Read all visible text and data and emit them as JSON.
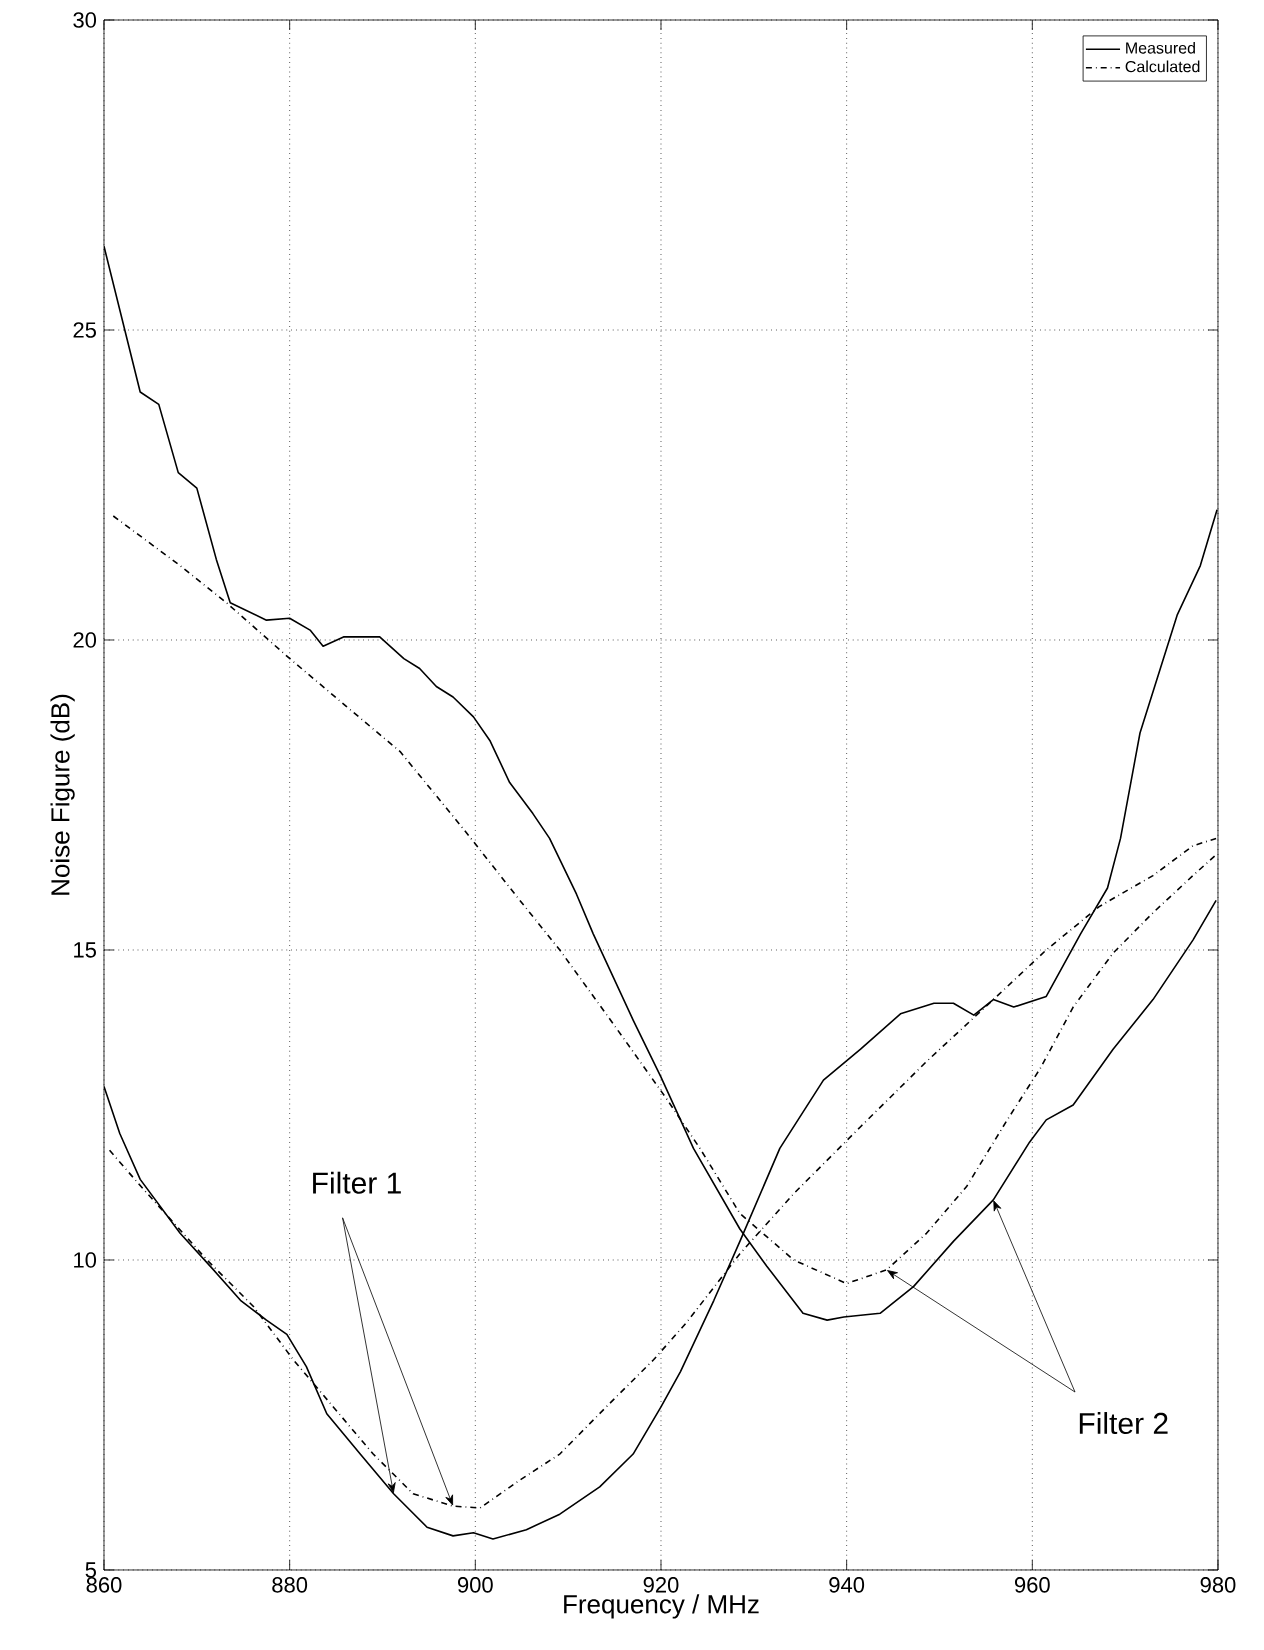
{
  "chart_data": {
    "type": "line",
    "xlabel": "Frequency / MHz",
    "ylabel": "Noise Figure (dB)",
    "xlim": [
      860,
      980
    ],
    "xticks": [
      860,
      880,
      900,
      920,
      940,
      960,
      980
    ],
    "ylim": [
      5,
      30
    ],
    "yticks": [
      5,
      10,
      15,
      20,
      25,
      30
    ],
    "grid": true,
    "legend": "top right",
    "series": [
      {
        "name": "Measured",
        "color": "#000000",
        "line_style": "solid",
        "x": [
          860,
          861.7,
          863.9,
          868.2,
          871.8,
          874.7,
          877.5,
          879.7,
          881.8,
          884,
          887.6,
          891.2,
          894.8,
          897.6,
          899.8,
          901.9,
          905.5,
          909.1,
          913.4,
          917,
          920,
          922.1,
          925.7,
          928.5,
          932.8,
          937.5,
          941.5,
          945.8,
          949.4,
          951.5,
          953.7,
          955.8,
          958,
          961.5,
          965.2,
          968.1,
          969.5,
          971.6,
          975.6,
          978.1,
          979.9
        ],
        "values": [
          12.8,
          12.04,
          11.3,
          10.43,
          9.84,
          9.35,
          9.03,
          8.8,
          8.28,
          7.52,
          6.87,
          6.23,
          5.69,
          5.55,
          5.6,
          5.5,
          5.65,
          5.9,
          6.34,
          6.87,
          7.63,
          8.2,
          9.35,
          10.3,
          11.8,
          12.9,
          13.4,
          13.97,
          14.14,
          14.14,
          13.95,
          14.2,
          14.08,
          14.25,
          15.26,
          16.0,
          16.8,
          18.5,
          20.4,
          21.2,
          22.1
        ]
      },
      {
        "color": "#000000",
        "line_style": "solid",
        "x": [
          860,
          863.9,
          865.9,
          868,
          870,
          872.1,
          873.6,
          877.5,
          880,
          882.2,
          883.6,
          885.8,
          889.7,
          892.3,
          894,
          895.8,
          897.6,
          899.8,
          901.6,
          903.7,
          906.2,
          908,
          910.9,
          912.7,
          917,
          920,
          923.5,
          928.5,
          931.4,
          935.3,
          937.9,
          939.7,
          943.6,
          947.2,
          951.5,
          955.8,
          959.7,
          961.5,
          964.4,
          968.7,
          973,
          977.3,
          979.8
        ],
        "values": [
          26.35,
          24.0,
          23.8,
          22.7,
          22.45,
          21.3,
          20.6,
          20.32,
          20.35,
          20.16,
          19.9,
          20.05,
          20.05,
          19.7,
          19.54,
          19.25,
          19.08,
          18.76,
          18.37,
          17.7,
          17.2,
          16.8,
          15.9,
          15.26,
          13.87,
          12.95,
          11.8,
          10.5,
          9.9,
          9.14,
          9.03,
          9.08,
          9.14,
          9.57,
          10.3,
          10.97,
          11.9,
          12.26,
          12.5,
          13.4,
          14.2,
          15.16,
          15.8
        ]
      },
      {
        "name": "Calculated",
        "color": "#000000",
        "line_style": "dashdot",
        "x": [
          860.6,
          863.9,
          871.1,
          876.1,
          880.4,
          884.7,
          889,
          893.3,
          897.6,
          900.5,
          904.8,
          909.1,
          914.1,
          919.2,
          922.8,
          928.5,
          934.3,
          941.5,
          948.6,
          955.8,
          961.5,
          967.2,
          973,
          977.3,
          979.8
        ],
        "values": [
          11.77,
          11.2,
          10.0,
          9.25,
          8.39,
          7.63,
          6.87,
          6.23,
          6.03,
          6.0,
          6.45,
          6.87,
          7.63,
          8.39,
          9.0,
          10.1,
          11.07,
          12.15,
          13.2,
          14.2,
          15.0,
          15.7,
          16.2,
          16.68,
          16.8
        ]
      },
      {
        "color": "#000000",
        "line_style": "dashdot",
        "x": [
          861,
          868.2,
          873.2,
          879.7,
          886.1,
          891.9,
          899,
          904.8,
          909.1,
          914.9,
          920.6,
          924.2,
          928.5,
          934.3,
          940,
          944.3,
          948.6,
          952.9,
          957.3,
          960.9,
          964.4,
          968.7,
          973,
          977.3,
          979.9
        ],
        "values": [
          22.0,
          21.2,
          20.6,
          19.74,
          18.93,
          18.2,
          16.9,
          15.8,
          15.0,
          13.8,
          12.6,
          11.8,
          10.75,
          10.0,
          9.62,
          9.84,
          10.43,
          11.18,
          12.26,
          13.1,
          14.08,
          14.95,
          15.6,
          16.2,
          16.55
        ]
      }
    ],
    "annotations": [
      {
        "text": "Filter 1",
        "x": 891.2,
        "y": 6.23
      },
      {
        "text": "Filter 2",
        "x": 955.8,
        "y": 10.97
      }
    ]
  }
}
